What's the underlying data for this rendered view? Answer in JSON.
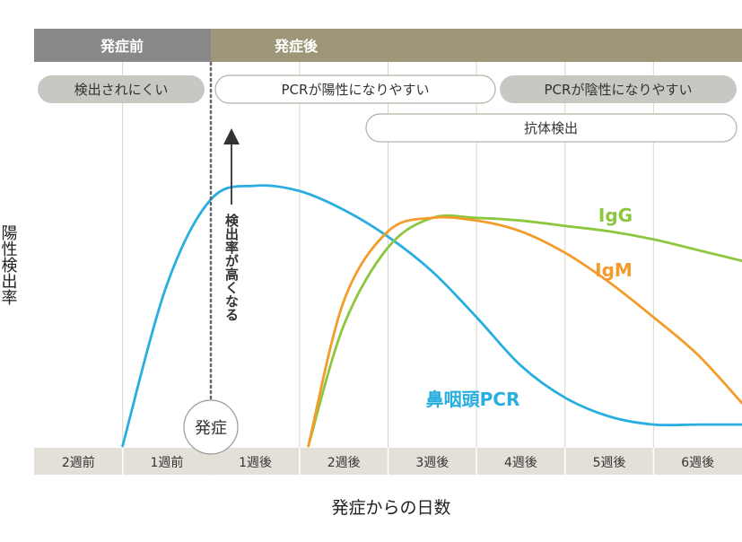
{
  "chart_data": {
    "type": "line",
    "xlabel": "発症からの日数",
    "ylabel": "陽性検出率",
    "x_categories": [
      "2週前",
      "1週前",
      "1週後",
      "2週後",
      "3週後",
      "4週後",
      "5週後",
      "6週後"
    ],
    "x_range_weeks": [
      -2,
      6
    ],
    "onset_week": 0,
    "onset_label": "発症",
    "phase_labels": {
      "before": "発症前",
      "after": "発症後"
    },
    "annotations": {
      "before_onset": "検出されにくい",
      "pcr_positive": "PCRが陽性になりやすい",
      "pcr_negative": "PCRが陰性になりやすい",
      "antibody": "抗体検出",
      "vertical_arrow": "検出率が高くなる"
    },
    "series": [
      {
        "name": "鼻咽頭PCR",
        "color": "#29aee0",
        "x": [
          -1,
          -0.5,
          0,
          0.5,
          1,
          1.5,
          2,
          2.5,
          3,
          3.5,
          4,
          4.5,
          5,
          5.5,
          6
        ],
        "y": [
          0,
          60,
          92,
          97,
          95,
          88,
          78,
          65,
          48,
          30,
          18,
          11,
          8,
          8,
          8
        ]
      },
      {
        "name": "IgG",
        "color": "#8dc63f",
        "x": [
          1.1,
          1.5,
          2,
          2.5,
          3,
          3.5,
          4,
          4.5,
          5,
          5.5,
          6
        ],
        "y": [
          0,
          45,
          74,
          85,
          85,
          84,
          82,
          80,
          77,
          73,
          69
        ]
      },
      {
        "name": "IgM",
        "color": "#f39c2b",
        "x": [
          1.1,
          1.5,
          2,
          2.5,
          3,
          3.5,
          4,
          4.5,
          5,
          5.5,
          6
        ],
        "y": [
          0,
          54,
          80,
          85,
          84,
          80,
          72,
          61,
          48,
          34,
          16
        ]
      }
    ],
    "ylim": [
      0,
      100
    ],
    "grid": true,
    "colors": {
      "header_before": "#888888",
      "header_after": "#9e9678",
      "band": "#e3e0d8",
      "grid": "#dad6cc"
    }
  }
}
